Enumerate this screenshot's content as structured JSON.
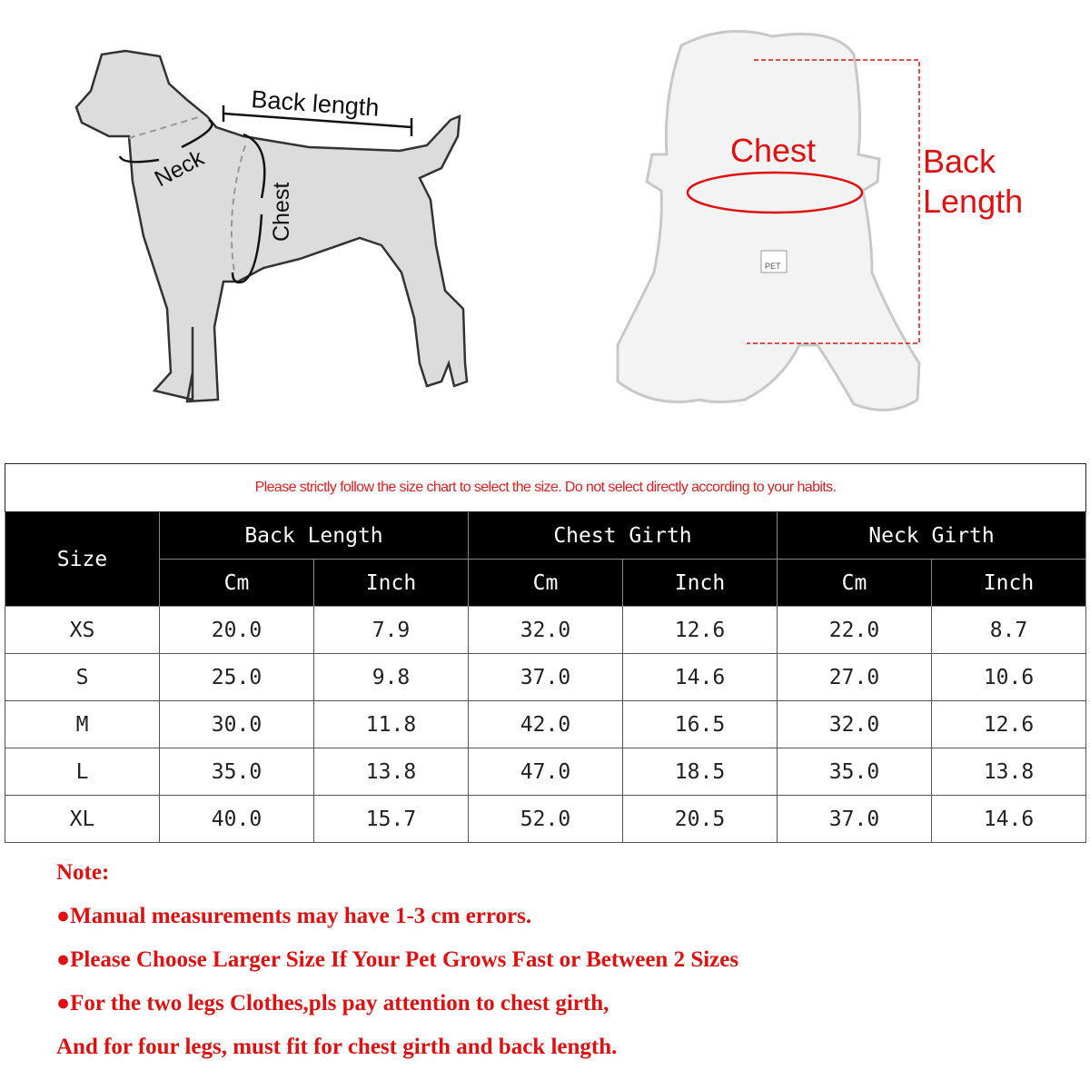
{
  "diagram": {
    "dog_labels": {
      "back_length": "Back length",
      "neck": "Neck",
      "chest": "Chest"
    },
    "garment_labels": {
      "chest": "Chest",
      "back_length_line1": "Back",
      "back_length_line2": "Length",
      "tag": "PET"
    }
  },
  "size_chart": {
    "caption": "Please strictly follow the size chart to select the size. Do not select directly according to your habits.",
    "headers": {
      "size": "Size",
      "back_length": "Back Length",
      "chest_girth": "Chest Girth",
      "neck_girth": "Neck Girth",
      "cm": "Cm",
      "inch": "Inch"
    },
    "rows": [
      [
        "XS",
        "20.0",
        "7.9",
        "32.0",
        "12.6",
        "22.0",
        "8.7"
      ],
      [
        "S",
        "25.0",
        "9.8",
        "37.0",
        "14.6",
        "27.0",
        "10.6"
      ],
      [
        "M",
        "30.0",
        "11.8",
        "42.0",
        "16.5",
        "32.0",
        "12.6"
      ],
      [
        "L",
        "35.0",
        "13.8",
        "47.0",
        "18.5",
        "35.0",
        "13.8"
      ],
      [
        "XL",
        "40.0",
        "15.7",
        "52.0",
        "20.5",
        "37.0",
        "14.6"
      ]
    ]
  },
  "notes": {
    "title": "Note:",
    "items": [
      "●Manual measurements may have 1-3 cm errors.",
      "●Please Choose Larger Size If Your Pet Grows Fast or Between 2 Sizes",
      "●For the two legs Clothes,pls pay attention to chest girth,",
      "And for four legs, must fit for chest girth and back length."
    ]
  },
  "colors": {
    "accent_red": "#e01010",
    "header_bg": "#000000",
    "dog_fill": "#dcdcdc"
  }
}
